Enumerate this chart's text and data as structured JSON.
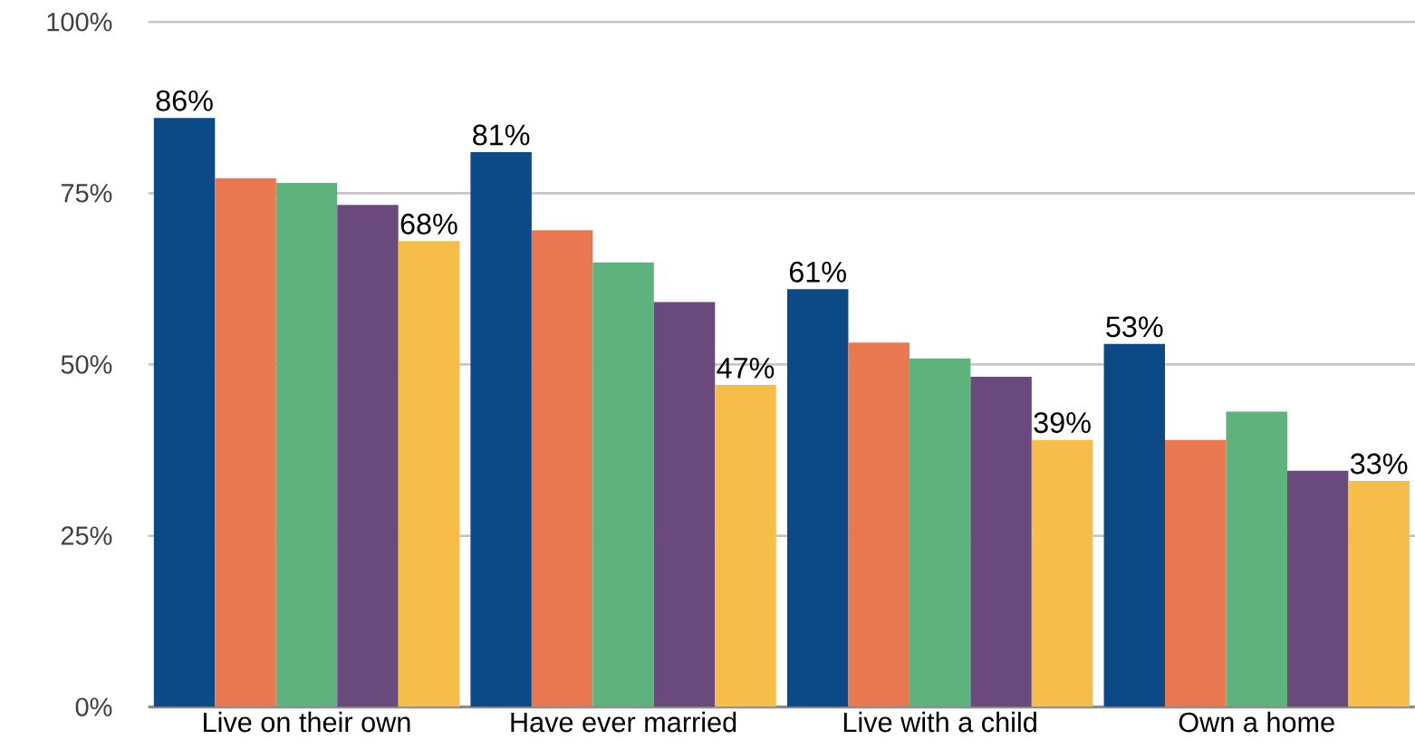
{
  "chart_data": {
    "type": "bar",
    "categories": [
      "Live on their own",
      "Have ever married",
      "Live with a child",
      "Own a home"
    ],
    "series": [
      {
        "color": "#0c4a87",
        "values": [
          86,
          81,
          61,
          53
        ],
        "value_labels": [
          "86%",
          "81%",
          "61%",
          "53%"
        ]
      },
      {
        "color": "#e9774f",
        "values": [
          77.2,
          69.6,
          53.2,
          39
        ]
      },
      {
        "color": "#5db37b",
        "values": [
          76.5,
          64.9,
          50.9,
          43.1
        ]
      },
      {
        "color": "#6a4a7c",
        "values": [
          73.3,
          59.1,
          48.2,
          34.5
        ]
      },
      {
        "color": "#f6be48",
        "values": [
          68,
          47,
          39,
          33
        ],
        "value_labels": [
          "68%",
          "47%",
          "39%",
          "33%"
        ]
      }
    ],
    "ylim": [
      0,
      100
    ],
    "yticks": [
      {
        "value": 0,
        "label": "0%"
      },
      {
        "value": 25,
        "label": "25%"
      },
      {
        "value": 50,
        "label": "50%"
      },
      {
        "value": 75,
        "label": "75%"
      },
      {
        "value": 100,
        "label": "100%"
      }
    ],
    "grid": "y"
  }
}
